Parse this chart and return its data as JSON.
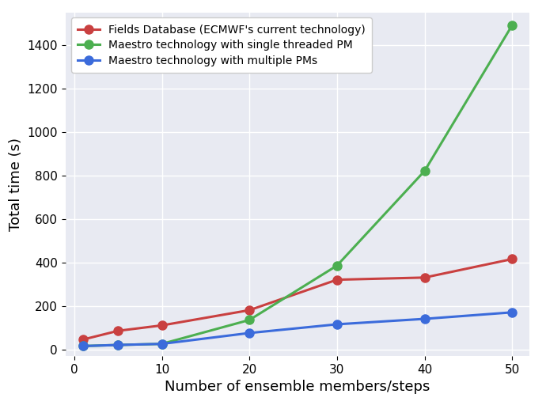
{
  "x": [
    1,
    5,
    10,
    20,
    30,
    40,
    50
  ],
  "fields_db": [
    45,
    85,
    110,
    180,
    320,
    330,
    415
  ],
  "maestro_single": [
    15,
    20,
    25,
    135,
    385,
    820,
    1490
  ],
  "maestro_multi": [
    15,
    20,
    25,
    75,
    115,
    140,
    170
  ],
  "fields_db_color": "#c94040",
  "maestro_single_color": "#4caf50",
  "maestro_multi_color": "#3b6bdb",
  "fields_db_label": "Fields Database (ECMWF's current technology)",
  "maestro_single_label": "Maestro technology with single threaded PM",
  "maestro_multi_label": "Maestro technology with multiple PMs",
  "xlabel": "Number of ensemble members/steps",
  "ylabel": "Total time (s)",
  "xlim": [
    -1,
    52
  ],
  "ylim": [
    -30,
    1550
  ],
  "xticks": [
    0,
    10,
    20,
    30,
    40,
    50
  ],
  "yticks": [
    0,
    200,
    400,
    600,
    800,
    1000,
    1200,
    1400
  ],
  "plot_bg_color": "#e8eaf2",
  "fig_bg_color": "#ffffff",
  "grid_color": "#ffffff",
  "linewidth": 2.2,
  "markersize": 8,
  "xlabel_fontsize": 13,
  "ylabel_fontsize": 13,
  "tick_fontsize": 11,
  "legend_fontsize": 10
}
